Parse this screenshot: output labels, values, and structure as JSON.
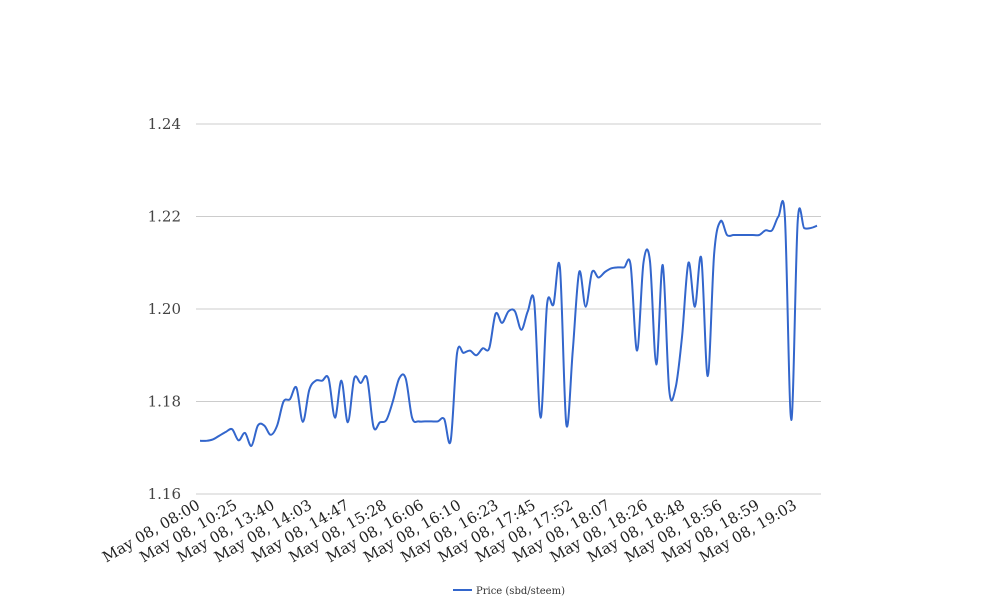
{
  "chart_data": {
    "type": "line",
    "title": "",
    "xlabel": "",
    "ylabel": "",
    "ylim": [
      1.16,
      1.24
    ],
    "yticks": [
      "1.16",
      "1.18",
      "1.20",
      "1.22",
      "1.24"
    ],
    "grid": true,
    "legend_position": "bottom-center",
    "x_tick_labels": [
      "May 08, 08:00",
      "May 08, 10:25",
      "May 08, 13:40",
      "May 08, 14:03",
      "May 08, 14:47",
      "May 08, 15:28",
      "May 08, 16:06",
      "May 08, 16:10",
      "May 08, 16:23",
      "May 08, 17:45",
      "May 08, 17:52",
      "May 08, 18:07",
      "May 08, 18:26",
      "May 08, 18:48",
      "May 08, 18:56",
      "May 08, 18:59",
      "May 08, 19:03"
    ],
    "series": [
      {
        "name": "Price (sbd/steem)",
        "color": "#3366cc",
        "values": [
          1.1715,
          1.1715,
          1.1718,
          1.1726,
          1.1734,
          1.174,
          1.1716,
          1.1732,
          1.1704,
          1.1748,
          1.1748,
          1.1728,
          1.1748,
          1.18,
          1.1805,
          1.183,
          1.1756,
          1.1825,
          1.1845,
          1.1845,
          1.185,
          1.1765,
          1.1845,
          1.1755,
          1.185,
          1.184,
          1.185,
          1.1745,
          1.1755,
          1.176,
          1.18,
          1.185,
          1.185,
          1.1765,
          1.1757,
          1.1757,
          1.1757,
          1.1757,
          1.1762,
          1.1715,
          1.1905,
          1.1905,
          1.191,
          1.19,
          1.1915,
          1.1915,
          1.199,
          1.197,
          1.1995,
          1.1995,
          1.1955,
          1.1995,
          1.2015,
          1.1765,
          1.201,
          1.201,
          1.209,
          1.175,
          1.191,
          1.208,
          1.2005,
          1.208,
          1.2068,
          1.208,
          1.2088,
          1.209,
          1.209,
          1.2095,
          1.191,
          1.21,
          1.2105,
          1.188,
          1.2095,
          1.1825,
          1.183,
          1.194,
          1.21,
          1.2005,
          1.211,
          1.1855,
          1.212,
          1.219,
          1.216,
          1.216,
          1.216,
          1.216,
          1.216,
          1.216,
          1.217,
          1.217,
          1.22,
          1.22,
          1.176,
          1.219,
          1.2175,
          1.2175,
          1.218
        ]
      }
    ]
  }
}
